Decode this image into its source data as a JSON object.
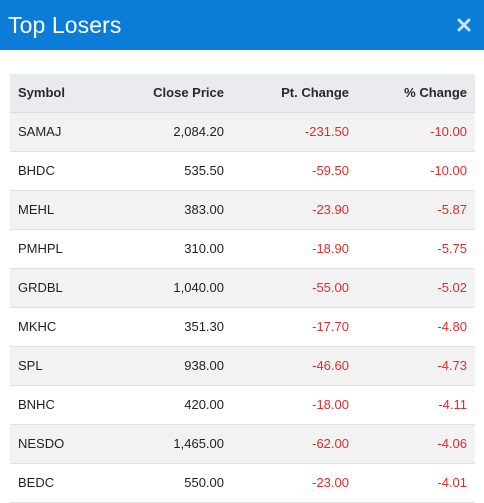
{
  "modal": {
    "title": "Top Losers",
    "close_icon": "close-icon"
  },
  "colors": {
    "header_bg": "#0b7dd9",
    "negative": "#e02b2b",
    "row_alt": "#f2f2f2",
    "thead_bg": "#e9ebef"
  },
  "table": {
    "headers": {
      "symbol": "Symbol",
      "close_price": "Close Price",
      "pt_change": "Pt. Change",
      "pct_change": "% Change"
    },
    "rows": [
      {
        "symbol": "SAMAJ",
        "close_price": "2,084.20",
        "pt_change": "-231.50",
        "pct_change": "-10.00"
      },
      {
        "symbol": "BHDC",
        "close_price": "535.50",
        "pt_change": "-59.50",
        "pct_change": "-10.00"
      },
      {
        "symbol": "MEHL",
        "close_price": "383.00",
        "pt_change": "-23.90",
        "pct_change": "-5.87"
      },
      {
        "symbol": "PMHPL",
        "close_price": "310.00",
        "pt_change": "-18.90",
        "pct_change": "-5.75"
      },
      {
        "symbol": "GRDBL",
        "close_price": "1,040.00",
        "pt_change": "-55.00",
        "pct_change": "-5.02"
      },
      {
        "symbol": "MKHC",
        "close_price": "351.30",
        "pt_change": "-17.70",
        "pct_change": "-4.80"
      },
      {
        "symbol": "SPL",
        "close_price": "938.00",
        "pt_change": "-46.60",
        "pct_change": "-4.73"
      },
      {
        "symbol": "BNHC",
        "close_price": "420.00",
        "pt_change": "-18.00",
        "pct_change": "-4.11"
      },
      {
        "symbol": "NESDO",
        "close_price": "1,465.00",
        "pt_change": "-62.00",
        "pct_change": "-4.06"
      },
      {
        "symbol": "BEDC",
        "close_price": "550.00",
        "pt_change": "-23.00",
        "pct_change": "-4.01"
      }
    ]
  }
}
